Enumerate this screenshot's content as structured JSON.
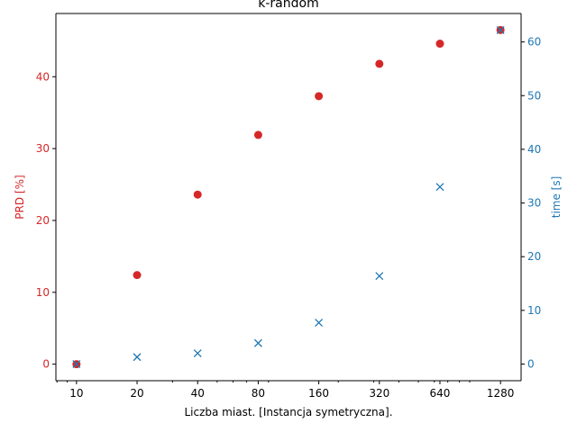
{
  "chart_data": {
    "type": "scatter",
    "title": "k-random",
    "xlabel": "Liczba miast. [Instancja symetryczna].",
    "x_scale": "log2",
    "x": [
      10,
      20,
      40,
      80,
      160,
      320,
      640,
      1280
    ],
    "x_tick_labels": [
      "10",
      "20",
      "40",
      "80",
      "160",
      "320",
      "640",
      "1280"
    ],
    "left_axis": {
      "label": "PRD [%]",
      "color": "#d62728",
      "ylim": [
        -2.3,
        48.8
      ],
      "ticks": [
        "0",
        "10",
        "20",
        "30",
        "40"
      ]
    },
    "right_axis": {
      "label": "time [s]",
      "color": "#1f77b4",
      "ylim": [
        -3.1,
        65.3
      ],
      "ticks": [
        "0",
        "10",
        "20",
        "30",
        "40",
        "50",
        "60"
      ]
    },
    "series": [
      {
        "axis": "left",
        "marker": "circle",
        "color": "#d62728",
        "values": [
          0.0,
          12.4,
          23.6,
          31.9,
          37.3,
          41.8,
          44.6,
          46.5
        ]
      },
      {
        "axis": "right",
        "marker": "x",
        "color": "#1f77b4",
        "values": [
          0.0,
          1.3,
          2.0,
          3.9,
          7.7,
          16.4,
          33.0,
          62.2
        ]
      }
    ],
    "grid": false,
    "legend": "none"
  }
}
